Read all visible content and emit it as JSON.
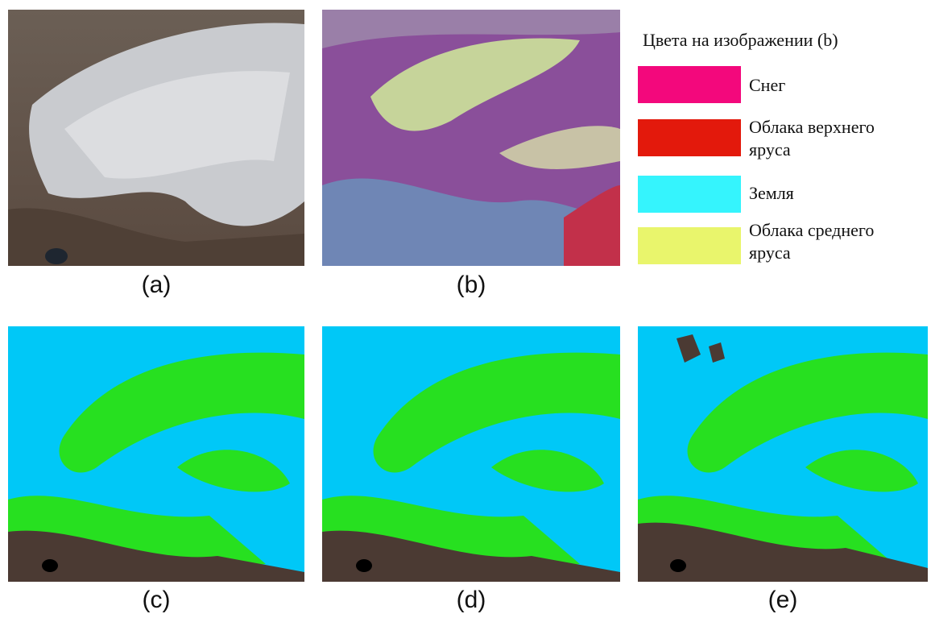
{
  "panels": [
    {
      "label": "(a)"
    },
    {
      "label": "(b)"
    },
    {
      "label": "(c)"
    },
    {
      "label": "(d)"
    },
    {
      "label": "(e)"
    }
  ],
  "legend": {
    "title": "Цвета на изображении (b)",
    "items": [
      {
        "label": "Снег",
        "color": "#f3087c"
      },
      {
        "label": "Облака верхнего яруса",
        "color": "#e3190c"
      },
      {
        "label": "Земля",
        "color": "#35f4fd"
      },
      {
        "label": "Облака среднего яруса",
        "color": "#e9f56c"
      }
    ]
  }
}
